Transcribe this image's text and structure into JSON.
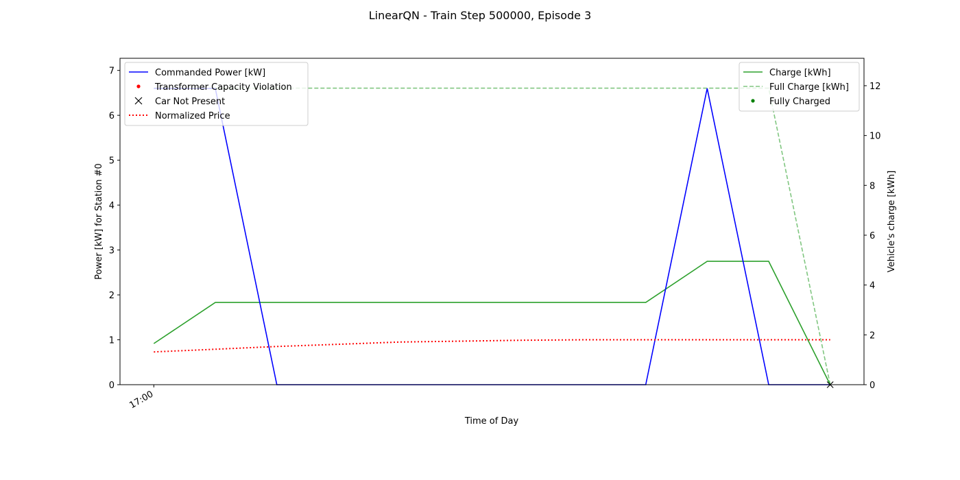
{
  "chart_data": {
    "type": "line",
    "title": "LinearQN - Train Step 500000, Episode 3",
    "xlabel": "Time of Day",
    "ylabel_left": "Power [kW] for Station #0",
    "ylabel_right": "Vehicle's charge [kWh]",
    "x_ticks": [
      {
        "x": 0,
        "label": "17:00"
      }
    ],
    "xlim": [
      -0.55,
      11.55
    ],
    "ylim_left": [
      0,
      7.27
    ],
    "ylim_right": [
      0,
      13.1
    ],
    "yticks_left": [
      0,
      1,
      2,
      3,
      4,
      5,
      6,
      7
    ],
    "yticks_right": [
      0,
      2,
      4,
      6,
      8,
      10,
      12
    ],
    "x": [
      0,
      1,
      2,
      3,
      4,
      5,
      6,
      7,
      8,
      9,
      10,
      11
    ],
    "series_left": [
      {
        "name": "Commanded Power [kW]",
        "color": "#0000ff",
        "style": "solid",
        "values": [
          6.6,
          6.6,
          0,
          0,
          0,
          0,
          0,
          0,
          0,
          6.6,
          0,
          0
        ]
      },
      {
        "name": "Normalized Price",
        "color": "#ff0000",
        "style": "dotted",
        "values": [
          0.73,
          0.79,
          0.85,
          0.9,
          0.95,
          0.97,
          0.99,
          1.0,
          1.0,
          1.0,
          1.0,
          1.0
        ]
      }
    ],
    "series_right": [
      {
        "name": "Charge [kWh]",
        "color": "#2ca02c",
        "style": "solid",
        "values": [
          1.65,
          3.3,
          3.3,
          3.3,
          3.3,
          3.3,
          3.3,
          3.3,
          3.3,
          4.95,
          4.95,
          0
        ]
      },
      {
        "name": "Full Charge [kWh]",
        "color": "#2ca02c",
        "style": "dashed",
        "values": [
          11.9,
          11.9,
          11.9,
          11.9,
          11.9,
          11.9,
          11.9,
          11.9,
          11.9,
          11.9,
          11.9,
          0
        ]
      }
    ],
    "markers": [
      {
        "name": "Car Not Present",
        "symbol": "x",
        "color": "#000000",
        "x": 11,
        "y_left": 0
      }
    ],
    "legend_left": {
      "placement": "top-left",
      "entries": [
        {
          "label": "Commanded Power [kW]",
          "kind": "line",
          "color": "#0000ff",
          "style": "solid"
        },
        {
          "label": "Transformer Capacity Violation",
          "kind": "dot",
          "color": "#ff0000"
        },
        {
          "label": "Car Not Present",
          "kind": "x",
          "color": "#000000"
        },
        {
          "label": "Normalized Price",
          "kind": "line",
          "color": "#ff0000",
          "style": "dotted"
        }
      ]
    },
    "legend_right": {
      "placement": "top-right",
      "entries": [
        {
          "label": "Charge [kWh]",
          "kind": "line",
          "color": "#2ca02c",
          "style": "solid"
        },
        {
          "label": "Full Charge [kWh]",
          "kind": "line",
          "color": "#2ca02c",
          "style": "dashed"
        },
        {
          "label": "Fully Charged",
          "kind": "dot",
          "color": "#008000"
        }
      ]
    }
  }
}
